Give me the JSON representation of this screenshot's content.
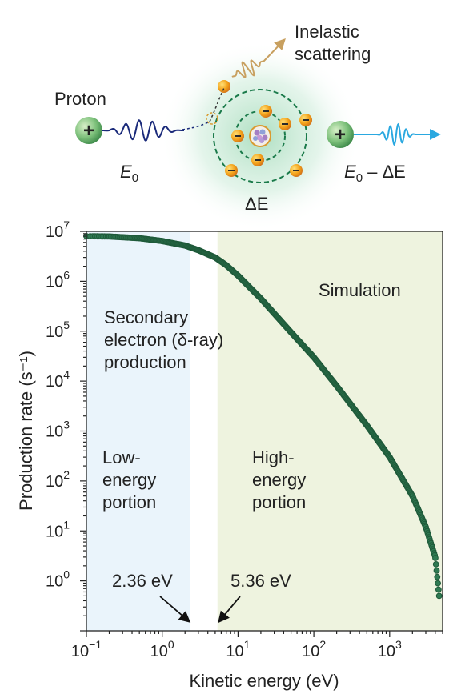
{
  "schematic": {
    "proton_label": "Proton",
    "e0_var": "E",
    "e0_sub": "0",
    "inelastic_line1": "Inelastic",
    "inelastic_line2": "scattering",
    "delta_e_label": "ΔE",
    "out_var": "E",
    "out_sub": "0",
    "out_rest": " – ΔE",
    "colors": {
      "incoming_wave": "#1a2a7a",
      "outgoing_wave": "#2aa8e0",
      "scatter_wave": "#c8a060",
      "orbit": "#1a7a4a",
      "glow": "#bfe6cf"
    }
  },
  "chart_data": {
    "type": "scatter",
    "log_x": true,
    "log_y": true,
    "xlim": [
      0.1,
      5000
    ],
    "ylim": [
      0.1,
      10000000
    ],
    "xlabel": "Kinetic energy (eV)",
    "ylabel": "Production rate (s⁻¹)",
    "x_ticks": [
      {
        "base": "10",
        "exp": "−1",
        "value": 0.1
      },
      {
        "base": "10",
        "exp": "0",
        "value": 1
      },
      {
        "base": "10",
        "exp": "1",
        "value": 10
      },
      {
        "base": "10",
        "exp": "2",
        "value": 100
      },
      {
        "base": "10",
        "exp": "3",
        "value": 1000
      }
    ],
    "y_ticks": [
      {
        "base": "10",
        "exp": "0",
        "value": 1
      },
      {
        "base": "10",
        "exp": "1",
        "value": 10
      },
      {
        "base": "10",
        "exp": "2",
        "value": 100
      },
      {
        "base": "10",
        "exp": "3",
        "value": 1000
      },
      {
        "base": "10",
        "exp": "4",
        "value": 10000
      },
      {
        "base": "10",
        "exp": "5",
        "value": 100000
      },
      {
        "base": "10",
        "exp": "6",
        "value": 1000000
      },
      {
        "base": "10",
        "exp": "7",
        "value": 10000000
      }
    ],
    "series": [
      {
        "color": "#1f5a3a",
        "points": [
          [
            0.1,
            8000000
          ],
          [
            0.2,
            7900000
          ],
          [
            0.5,
            7300000
          ],
          [
            1,
            6400000
          ],
          [
            2,
            5200000
          ],
          [
            3,
            4200000
          ],
          [
            5,
            3000000
          ],
          [
            7,
            2100000
          ],
          [
            10,
            1300000
          ],
          [
            20,
            450000
          ],
          [
            50,
            95000
          ],
          [
            100,
            30000
          ],
          [
            200,
            8000
          ],
          [
            500,
            1300
          ],
          [
            1000,
            300
          ],
          [
            2000,
            50
          ],
          [
            3000,
            12
          ],
          [
            4000,
            3
          ],
          [
            4500,
            0.5
          ]
        ]
      }
    ],
    "regions": [
      {
        "x_from": 0.1,
        "x_to": 2.36,
        "color": "#eaf4fb"
      },
      {
        "x_from": 5.36,
        "x_to": 5000,
        "color": "#eef3df"
      }
    ],
    "annotations": {
      "simulation": "Simulation",
      "secondary_line1": "Secondary",
      "secondary_line2": "electron (δ-ray)",
      "secondary_line3": "production",
      "low_line1": "Low-",
      "low_line2": "energy",
      "low_line3": "portion",
      "high_line1": "High-",
      "high_line2": "energy",
      "high_line3": "portion",
      "marker1": "2.36 eV",
      "marker2": "5.36 eV"
    },
    "colors": {
      "simulation_text": "#2a3a78",
      "axis": "#222222"
    }
  }
}
